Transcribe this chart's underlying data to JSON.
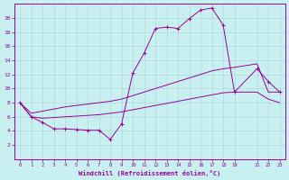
{
  "xlabel": "Windchill (Refroidissement éolien,°C)",
  "bg_color": "#c8f0f0",
  "line_color": "#990099",
  "grid_color": "#b0d8d8",
  "x_main": [
    0,
    1,
    2,
    3,
    4,
    5,
    6,
    7,
    8,
    9,
    10,
    11,
    12,
    13,
    14,
    15,
    16,
    17,
    18,
    19,
    21,
    22,
    23
  ],
  "y_main": [
    8.0,
    6.0,
    5.2,
    4.3,
    4.3,
    4.2,
    4.1,
    4.1,
    2.8,
    5.0,
    12.2,
    15.0,
    18.5,
    18.7,
    18.5,
    19.9,
    21.1,
    21.4,
    19.0,
    9.5,
    12.8,
    11.0,
    9.5
  ],
  "x_upper": [
    0,
    1,
    2,
    3,
    4,
    5,
    6,
    7,
    8,
    9,
    10,
    11,
    12,
    13,
    14,
    15,
    16,
    17,
    18,
    19,
    21,
    22,
    23
  ],
  "y_upper": [
    8.0,
    6.5,
    6.8,
    7.1,
    7.4,
    7.6,
    7.8,
    8.0,
    8.2,
    8.5,
    9.0,
    9.5,
    10.0,
    10.5,
    11.0,
    11.5,
    12.0,
    12.5,
    12.8,
    13.0,
    13.5,
    9.5,
    9.5
  ],
  "x_lower": [
    0,
    1,
    2,
    3,
    4,
    5,
    6,
    7,
    8,
    9,
    10,
    11,
    12,
    13,
    14,
    15,
    16,
    17,
    18,
    19,
    21,
    22,
    23
  ],
  "y_lower": [
    8.0,
    6.0,
    5.8,
    5.9,
    6.0,
    6.1,
    6.2,
    6.3,
    6.5,
    6.7,
    7.0,
    7.3,
    7.6,
    7.9,
    8.2,
    8.5,
    8.8,
    9.1,
    9.4,
    9.5,
    9.5,
    8.5,
    8.0
  ],
  "ylim": [
    0,
    22
  ],
  "xlim": [
    -0.5,
    23.5
  ],
  "yticks": [
    2,
    4,
    6,
    8,
    10,
    12,
    14,
    16,
    18,
    20
  ],
  "xticks": [
    0,
    1,
    2,
    3,
    4,
    5,
    6,
    7,
    8,
    9,
    10,
    11,
    12,
    13,
    14,
    15,
    16,
    17,
    18,
    19,
    21,
    22,
    23
  ]
}
